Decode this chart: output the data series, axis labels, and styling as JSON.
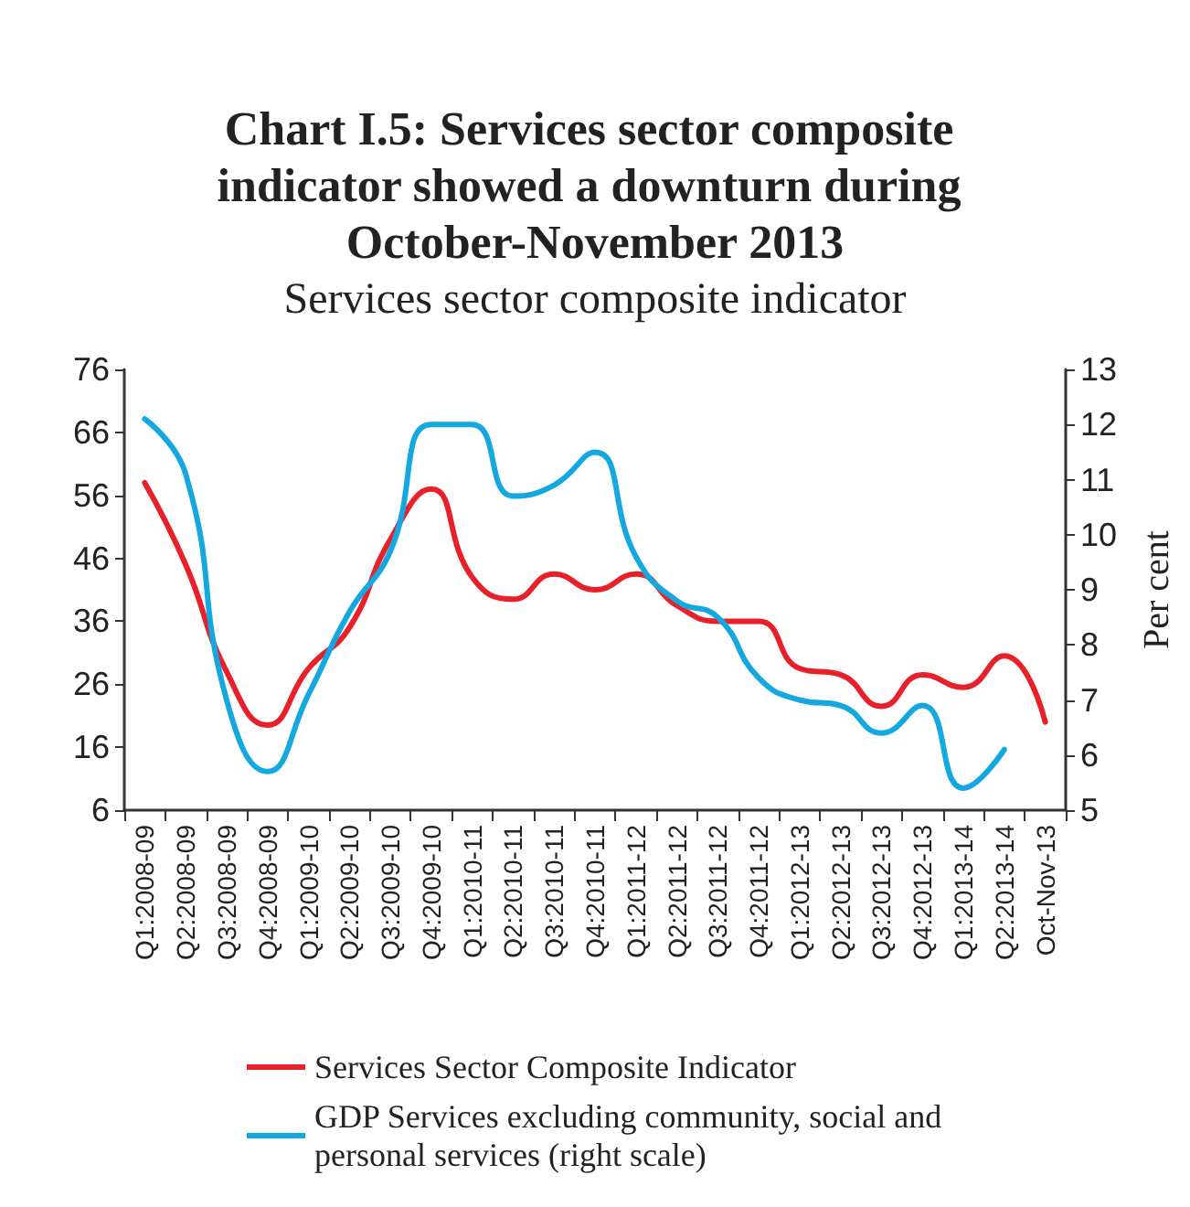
{
  "chart_data": {
    "type": "line",
    "title": "Chart I.5: Services sector composite indicator showed a downturn during October-November 2013",
    "subtitle": "Services sector composite indicator",
    "y2label": "Per cent",
    "categories": [
      "Q1:2008-09",
      "Q2:2008-09",
      "Q3:2008-09",
      "Q4:2008-09",
      "Q1:2009-10",
      "Q2:2009-10",
      "Q3:2009-10",
      "Q4:2009-10",
      "Q1:2010-11",
      "Q2:2010-11",
      "Q3:2010-11",
      "Q4:2010-11",
      "Q1:2011-12",
      "Q2:2011-12",
      "Q3:2011-12",
      "Q4:2011-12",
      "Q1:2012-13",
      "Q2:2012-13",
      "Q3:2012-13",
      "Q4:2012-13",
      "Q1:2013-14",
      "Q2:2013-14",
      "Oct-Nov-13"
    ],
    "series": [
      {
        "name": "Services Sector Composite Indicator",
        "color": "#e8202a",
        "values": [
          58,
          45,
          28,
          19.5,
          28.5,
          35,
          49,
          57,
          43,
          39.5,
          43.5,
          41,
          43.5,
          38.5,
          36,
          36,
          28.5,
          27.5,
          22.5,
          27.5,
          25.5,
          30.5,
          20
        ]
      },
      {
        "name": "GDP Services excluding community, social and personal services (right scale)",
        "color": "#13a8e0",
        "axis": "y2",
        "values": [
          12.1,
          11.1,
          7.0,
          5.7,
          7.1,
          8.6,
          9.7,
          12.0,
          12.0,
          10.7,
          10.9,
          11.5,
          9.6,
          8.8,
          8.5,
          7.4,
          7.0,
          6.9,
          6.4,
          6.9,
          5.4,
          6.1,
          null
        ]
      }
    ],
    "ylim": [
      6,
      76
    ],
    "yticks": [
      6,
      16,
      26,
      36,
      46,
      56,
      66,
      76
    ],
    "y2lim": [
      5,
      13
    ],
    "y2ticks": [
      5,
      6,
      7,
      8,
      9,
      10,
      11,
      12,
      13
    ],
    "grid": false,
    "legend": "bottom",
    "marker": "none",
    "line_style": "solid"
  }
}
